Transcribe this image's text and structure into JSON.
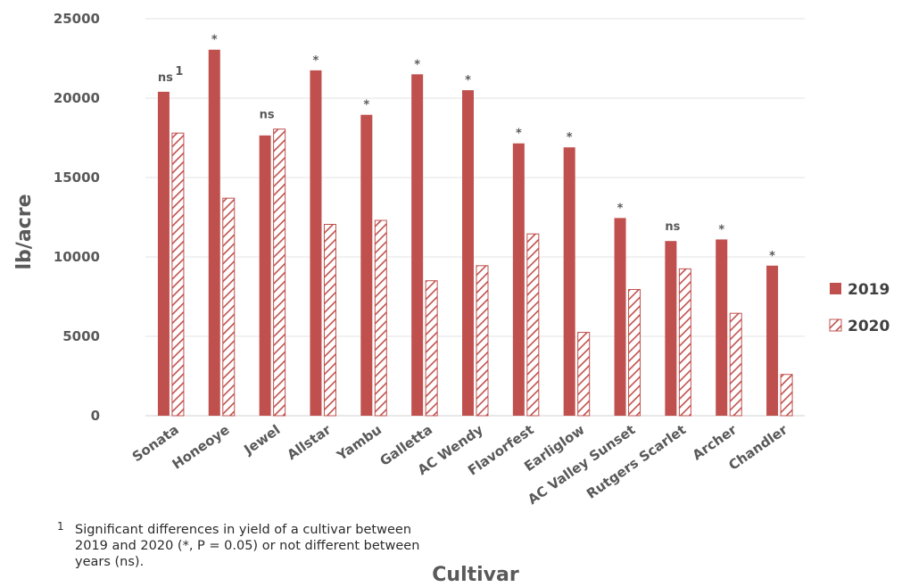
{
  "chart_data": {
    "type": "bar",
    "ylabel": "lb/acre",
    "xlabel": "Cultivar",
    "ylim": [
      0,
      25000
    ],
    "yticks": [
      0,
      5000,
      10000,
      15000,
      20000,
      25000
    ],
    "grid": "horizontal",
    "legend_position": "right",
    "categories": [
      "Sonata",
      "Honeoye",
      "Jewel",
      "Allstar",
      "Yambu",
      "Galletta",
      "AC Wendy",
      "Flavorfest",
      "Earliglow",
      "AC Valley Sunset",
      "Rutgers Scarlet",
      "Archer",
      "Chandler"
    ],
    "series": [
      {
        "name": "2019",
        "style": "solid",
        "color": "#c0504d",
        "values": [
          20400,
          23050,
          17650,
          21750,
          18950,
          21500,
          20500,
          17150,
          16900,
          12450,
          11000,
          11100,
          9450
        ]
      },
      {
        "name": "2020",
        "style": "hatched",
        "color": "#c0504d",
        "values": [
          17800,
          13700,
          18050,
          12050,
          12300,
          8500,
          9450,
          11450,
          5250,
          7950,
          9250,
          6450,
          2600
        ]
      }
    ],
    "annotations": [
      "ns",
      "*",
      "ns",
      "*",
      "*",
      "*",
      "*",
      "*",
      "*",
      "*",
      "ns",
      "*",
      "*"
    ],
    "annotation_footnote_marker": "1"
  },
  "footnote": {
    "marker": "1",
    "text": "Significant differences in yield of a cultivar between 2019 and 2020 (*, P = 0.05) or not different between years (ns)."
  }
}
